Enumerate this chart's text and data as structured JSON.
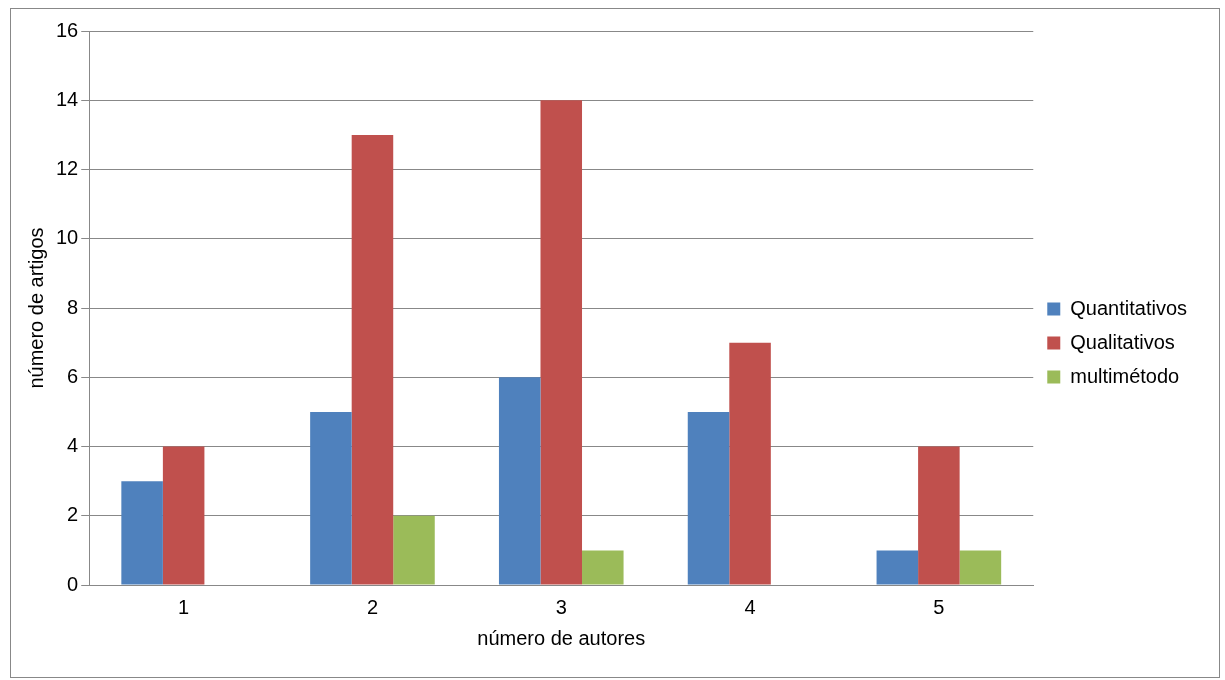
{
  "chart_data": {
    "type": "bar",
    "xlabel": "número de autores",
    "ylabel": "número de artigos",
    "categories": [
      "1",
      "2",
      "3",
      "4",
      "5"
    ],
    "series": [
      {
        "name": "Quantitativos",
        "color": "#4f81bd",
        "values": [
          3,
          5,
          6,
          5,
          1
        ]
      },
      {
        "name": "Qualitativos",
        "color": "#c0504d",
        "values": [
          4,
          13,
          14,
          7,
          4
        ]
      },
      {
        "name": "multimétodo",
        "color": "#9bbb59",
        "values": [
          0,
          2,
          1,
          0,
          1
        ]
      }
    ],
    "ylim": [
      0,
      16
    ],
    "yticks": [
      0,
      2,
      4,
      6,
      8,
      10,
      12,
      14,
      16
    ],
    "grid": "y",
    "legend": "right"
  }
}
